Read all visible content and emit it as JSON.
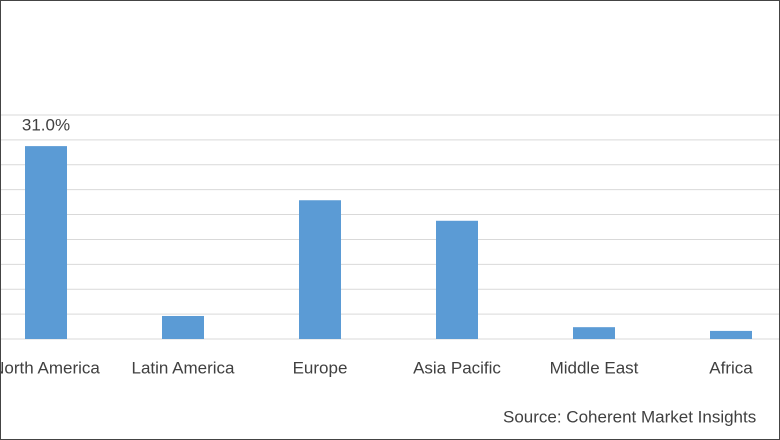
{
  "chart_data": {
    "type": "bar",
    "categories": [
      "North America",
      "Latin America",
      "Europe",
      "Asia Pacific",
      "Middle East",
      "Africa"
    ],
    "values": [
      31.0,
      3.7,
      22.3,
      19.0,
      1.9,
      1.3
    ],
    "value_labels": [
      "31.0%",
      null,
      null,
      null,
      null,
      null
    ],
    "color": "#5b9bd5",
    "ylim": [
      0,
      36
    ],
    "yticks": [
      0,
      4,
      8,
      12,
      16,
      20,
      24,
      28,
      32,
      36
    ],
    "grid": true,
    "source": "Source: Coherent Market Insights"
  }
}
